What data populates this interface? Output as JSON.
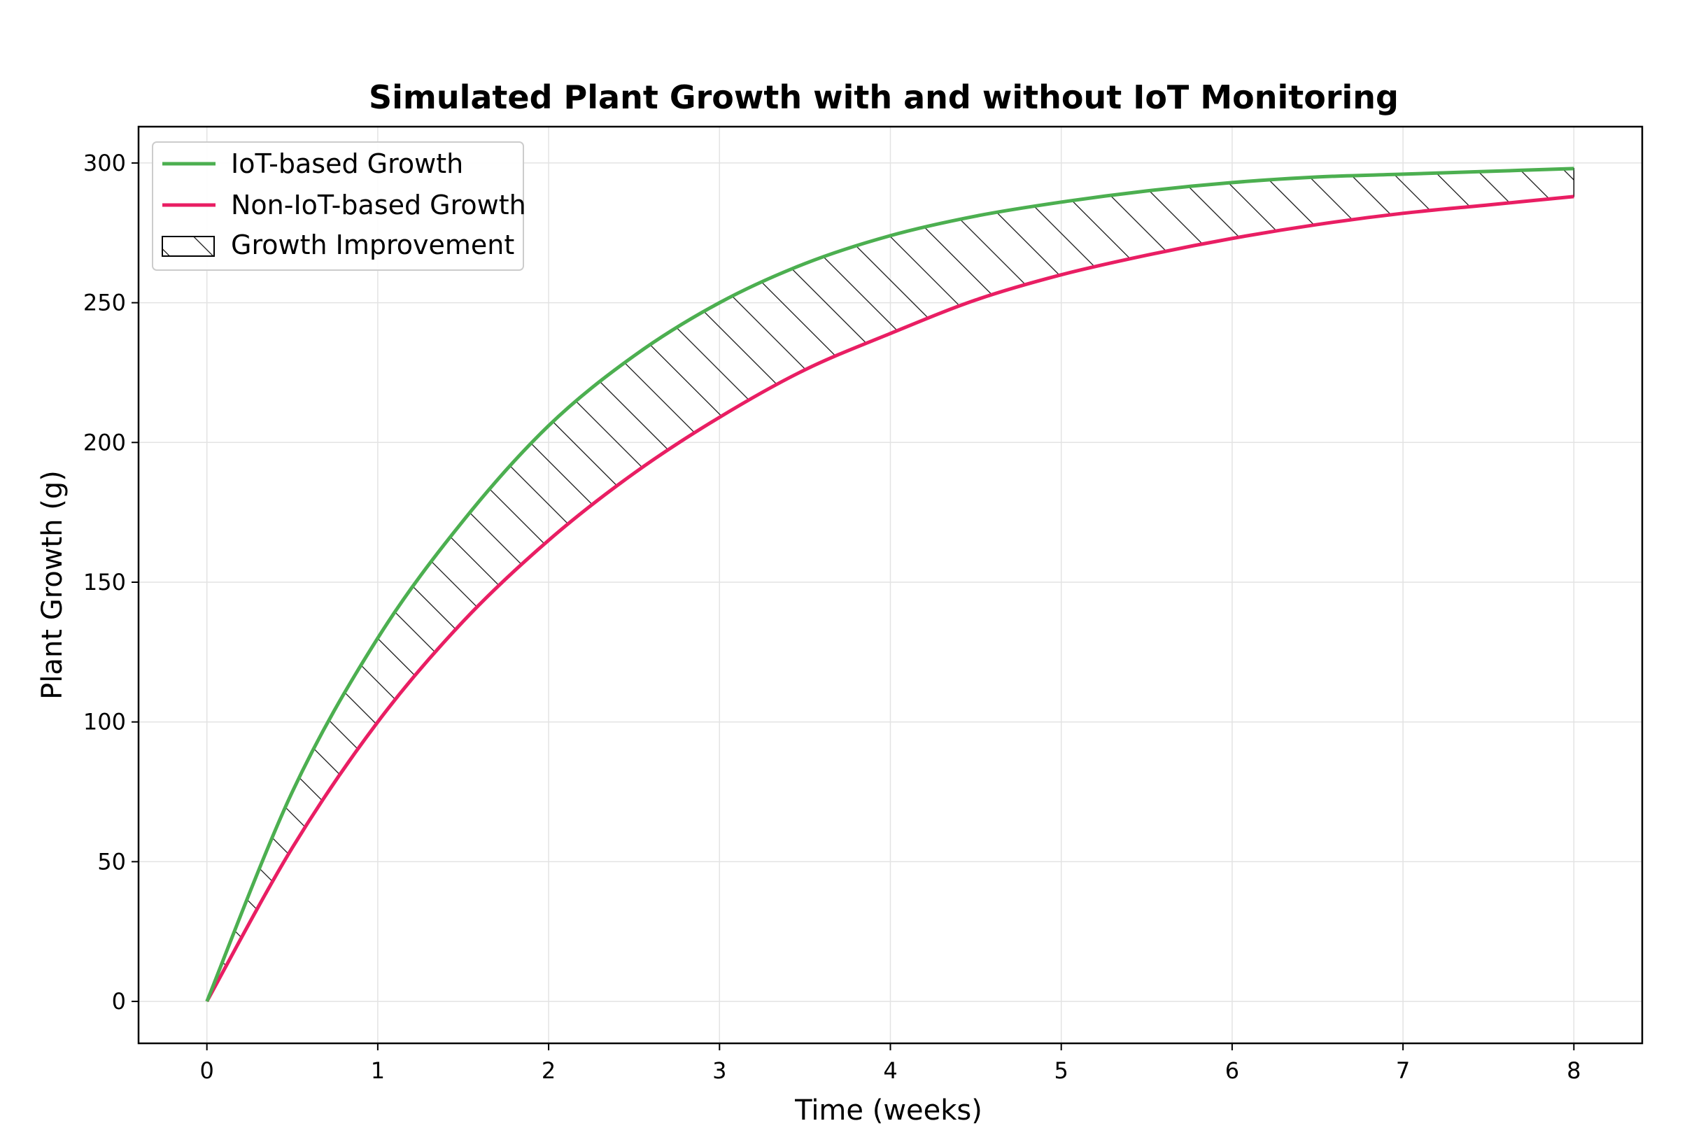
{
  "chart_data": {
    "type": "line",
    "title": "Simulated Plant Growth with and without IoT Monitoring",
    "xlabel": "Time (weeks)",
    "ylabel": "Plant Growth (g)",
    "xlim": [
      -0.4,
      8.4
    ],
    "ylim": [
      -15,
      313
    ],
    "xticks": [
      0,
      1,
      2,
      3,
      4,
      5,
      6,
      7,
      8
    ],
    "yticks": [
      0,
      50,
      100,
      150,
      200,
      250,
      300
    ],
    "grid": true,
    "legend_position": "top-left",
    "x": [
      0,
      0.5,
      1,
      1.5,
      2,
      2.5,
      3,
      3.5,
      4,
      4.5,
      5,
      5.5,
      6,
      6.5,
      7,
      7.5,
      8
    ],
    "series": [
      {
        "name": "IoT-based Growth",
        "color": "#4caf50",
        "values": [
          0,
          75,
          130,
          172,
          206,
          231,
          250,
          264,
          274,
          281,
          286,
          290,
          293,
          295,
          296,
          297,
          298
        ]
      },
      {
        "name": "Non-IoT-based Growth",
        "color": "#e91e63",
        "values": [
          0,
          55,
          100,
          136,
          165,
          189,
          209,
          226,
          239,
          251,
          260,
          267,
          273,
          278,
          282,
          285,
          288
        ]
      }
    ],
    "fill_between": {
      "name": "Growth Improvement",
      "hatch": "diagonal",
      "color": "#000000"
    }
  }
}
